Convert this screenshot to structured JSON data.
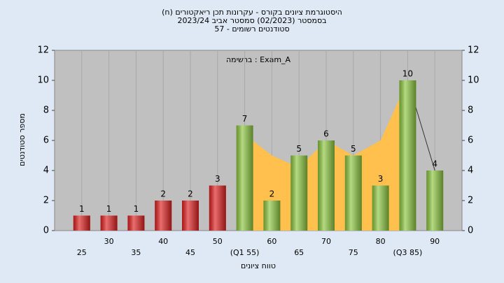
{
  "chart_data": {
    "type": "bar",
    "title": [
      "(היסטוגרמת ציונים בקורס - עקרונות תכן ריאקטורים (ח",
      "בסמסטר  (02/2023)  סמסטר אביב 2023/24",
      "סטודנטים רשומים - 57"
    ],
    "annotation": "ברשימה : Exam_A",
    "y_label": "מספר סטודנטים",
    "x_label": "טווח ציונים",
    "categories": [
      "25",
      "30",
      "35",
      "40",
      "45",
      "50",
      "(Q1 55)",
      "60",
      "65",
      "70",
      "75",
      "80",
      "(Q3 85)",
      "90"
    ],
    "values": [
      1,
      1,
      1,
      2,
      2,
      3,
      7,
      2,
      5,
      6,
      5,
      3,
      10,
      4
    ],
    "colors": [
      "#e02020",
      "#e02020",
      "#e02020",
      "#e02020",
      "#e02020",
      "#e02020",
      "#8cc63f",
      "#8cc63f",
      "#8cc63f",
      "#8cc63f",
      "#8cc63f",
      "#8cc63f",
      "#8cc63f",
      "#8cc63f"
    ],
    "curve": {
      "color": "#ffc04d",
      "values": [
        null,
        null,
        null,
        null,
        null,
        null,
        6.4,
        5,
        4.2,
        6,
        5,
        6,
        10,
        4
      ]
    },
    "ylim": [
      0,
      12
    ],
    "yticks": [
      0,
      2,
      4,
      6,
      8,
      10,
      12
    ],
    "grid": true
  }
}
